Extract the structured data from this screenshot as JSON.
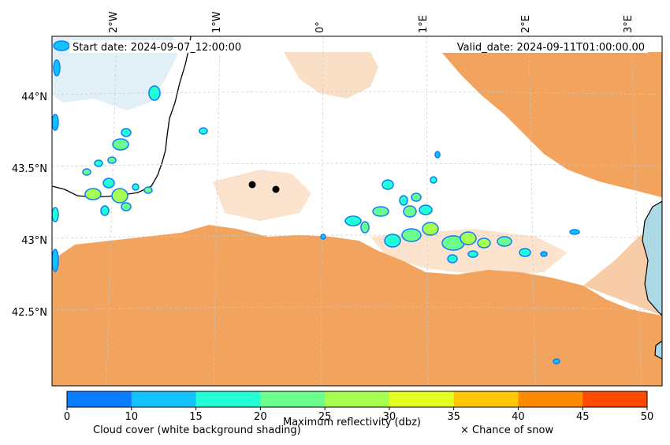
{
  "header": {
    "start_date": "Start date: 2024-09-07_12:00:00",
    "valid_date": "Valid_date: 2024-09-11T01:00:00.00"
  },
  "longitude_labels": [
    "2°W",
    "1°W",
    "0°",
    "1°E",
    "2°E",
    "3°E"
  ],
  "latitude_labels": [
    "44°N",
    "43.5°N",
    "43°N",
    "42.5°N"
  ],
  "colorbar": {
    "title": "Maximum reflectivity (dbz)",
    "ticks": [
      "0",
      "10",
      "15",
      "20",
      "25",
      "30",
      "35",
      "40",
      "45",
      "50"
    ],
    "colors": [
      "#0a7cff",
      "#11c2ff",
      "#22ffd4",
      "#6cff90",
      "#a7ff52",
      "#e4ff20",
      "#ffc800",
      "#ff8a00",
      "#ff4a00"
    ]
  },
  "captions": {
    "cloud_cover": "Cloud cover (white background shading)",
    "snow": "× Chance of snow"
  },
  "colors": {
    "cloud_shading": "#f2a35e",
    "sea": "#add8e6",
    "land": "#ffffff",
    "coastline": "#000000",
    "point_marker": "#000000"
  }
}
